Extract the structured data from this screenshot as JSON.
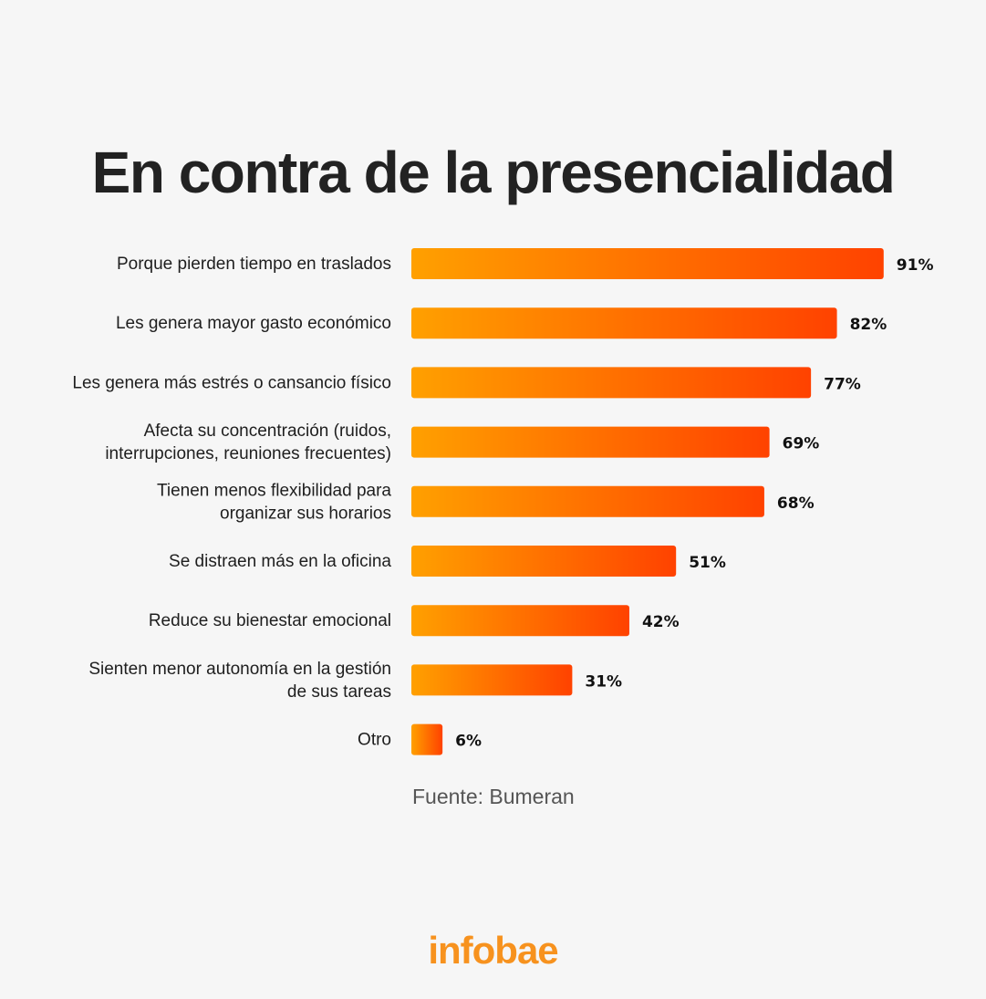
{
  "title": "En contra de la presencialidad",
  "source": "Fuente: Bumeran",
  "brand": "infobae",
  "colors": {
    "bar_start": "#ffa000",
    "bar_end": "#ff4200",
    "brand": "#f7921e"
  },
  "chart_data": {
    "type": "bar",
    "orientation": "horizontal",
    "title": "En contra de la presencialidad",
    "categories": [
      [
        "Porque pierden tiempo en traslados"
      ],
      [
        "Les genera mayor gasto económico"
      ],
      [
        "Les genera más estrés o cansancio físico"
      ],
      [
        "Afecta su concentración (ruidos,",
        "interrupciones, reuniones frecuentes)"
      ],
      [
        "Tienen menos flexibilidad para",
        "organizar sus horarios"
      ],
      [
        "Se distraen más en la oficina"
      ],
      [
        "Reduce su bienestar emocional"
      ],
      [
        "Sienten menor autonomía en la gestión",
        "de sus tareas"
      ],
      [
        "Otro"
      ]
    ],
    "values": [
      91,
      82,
      77,
      69,
      68,
      51,
      42,
      31,
      6
    ],
    "value_labels": [
      "91%",
      "82%",
      "77%",
      "69%",
      "68%",
      "51%",
      "42%",
      "31%",
      "6%"
    ],
    "xlim": [
      0,
      100
    ],
    "grid": false,
    "legend": "none"
  }
}
